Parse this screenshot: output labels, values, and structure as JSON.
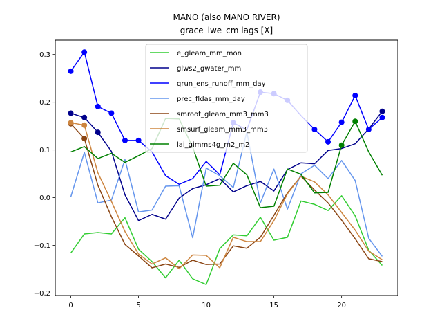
{
  "chart_data": {
    "type": "line",
    "title": "MANO (also MANO RIVER)",
    "subtitle": "grace_lwe_cm lags [X]",
    "xlabel": "",
    "ylabel": "",
    "xlim": [
      -1.15,
      24.15
    ],
    "ylim": [
      -0.205,
      0.33
    ],
    "xticks": [
      0,
      5,
      10,
      15,
      20
    ],
    "yticks": [
      -0.2,
      -0.1,
      0.0,
      0.1,
      0.2,
      0.3
    ],
    "ytick_labels": [
      "−0.2",
      "−0.1",
      "0.0",
      "0.1",
      "0.2",
      "0.3"
    ],
    "grid": false,
    "legend_position": "top-center",
    "x": [
      0,
      1,
      2,
      3,
      4,
      5,
      6,
      7,
      8,
      9,
      10,
      11,
      12,
      13,
      14,
      15,
      16,
      17,
      18,
      19,
      20,
      21,
      22,
      23
    ],
    "series": [
      {
        "name": "e_gleam_mm_mon",
        "color": "#32cd32",
        "values": [
          -0.116,
          -0.076,
          -0.073,
          -0.076,
          -0.042,
          -0.108,
          -0.134,
          -0.168,
          -0.131,
          -0.17,
          -0.182,
          -0.107,
          -0.078,
          -0.08,
          -0.041,
          -0.089,
          -0.083,
          -0.007,
          -0.014,
          -0.027,
          0.004,
          -0.038,
          -0.11,
          -0.142
        ],
        "markers": []
      },
      {
        "name": "glws2_gwater_mm",
        "color": "#00008b",
        "values": [
          0.177,
          0.168,
          0.137,
          0.097,
          0.006,
          -0.048,
          -0.035,
          -0.045,
          -0.001,
          0.019,
          0.027,
          0.04,
          0.012,
          0.025,
          0.034,
          0.014,
          0.059,
          0.073,
          0.071,
          0.099,
          0.103,
          0.113,
          0.144,
          0.181
        ],
        "markers": [
          0,
          1,
          2,
          23
        ]
      },
      {
        "name": "grun_ens_runoff_mm_day",
        "color": "#0000ff",
        "values": [
          0.265,
          0.305,
          0.191,
          0.177,
          0.12,
          0.12,
          0.096,
          0.046,
          0.028,
          0.04,
          0.076,
          0.048,
          0.157,
          0.142,
          0.221,
          0.218,
          0.204,
          0.172,
          0.143,
          0.117,
          0.158,
          0.214,
          0.143,
          0.168
        ],
        "markers": [
          0,
          1,
          2,
          3,
          4,
          5,
          12,
          14,
          15,
          16,
          18,
          19,
          20,
          21,
          22,
          23
        ]
      },
      {
        "name": "prec_fldas_mm_day",
        "color": "#6495ed",
        "values": [
          0.002,
          0.095,
          -0.011,
          -0.005,
          0.08,
          -0.03,
          -0.026,
          0.024,
          0.025,
          -0.084,
          0.062,
          0.046,
          0.021,
          0.138,
          -0.011,
          0.06,
          -0.024,
          0.05,
          0.068,
          0.04,
          0.078,
          0.036,
          -0.085,
          -0.123
        ],
        "markers": []
      },
      {
        "name": "smroot_gleam_mm3_mm3",
        "color": "#8b4513",
        "values": [
          0.155,
          0.124,
          0.026,
          -0.04,
          -0.098,
          -0.122,
          -0.147,
          -0.139,
          -0.146,
          -0.131,
          -0.14,
          -0.139,
          -0.101,
          -0.106,
          -0.083,
          -0.037,
          0.01,
          0.045,
          0.016,
          -0.011,
          -0.047,
          -0.086,
          -0.128,
          -0.134
        ],
        "markers": [
          0,
          1
        ]
      },
      {
        "name": "smsurf_gleam_mm3_mm3",
        "color": "#cd853f",
        "values": [
          0.157,
          0.152,
          0.052,
          -0.008,
          -0.071,
          -0.118,
          -0.139,
          -0.126,
          -0.149,
          -0.12,
          -0.121,
          -0.147,
          -0.083,
          -0.092,
          -0.092,
          -0.048,
          0.008,
          0.045,
          0.033,
          0.006,
          -0.031,
          -0.068,
          -0.112,
          -0.13
        ],
        "markers": [
          0,
          1
        ]
      },
      {
        "name": "lai_gimms4g_m2_m2",
        "color": "#008000",
        "values": [
          0.096,
          0.107,
          0.082,
          0.093,
          0.074,
          0.088,
          0.103,
          0.166,
          0.165,
          0.106,
          0.024,
          0.026,
          0.072,
          0.048,
          -0.021,
          -0.018,
          0.06,
          0.049,
          0.01,
          0.011,
          0.11,
          0.16,
          0.096,
          0.047
        ],
        "markers": [
          20,
          21
        ]
      }
    ]
  }
}
